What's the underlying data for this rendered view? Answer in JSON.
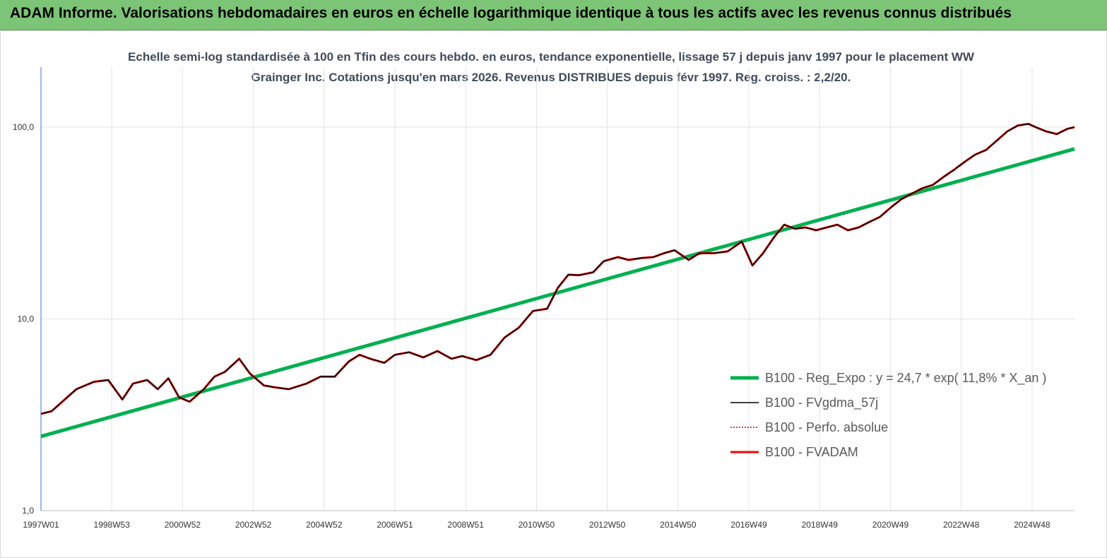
{
  "header": {
    "title": "ADAM Informe. Valorisations hebdomadaires en euros en échelle logarithmique identique à tous les actifs avec les revenus connus distribués"
  },
  "colors": {
    "header_bg": "#7cc576",
    "corner": "#f5b400",
    "trend": "#00b050",
    "fvadam": "#ff0000",
    "gdma": "#000000",
    "perfo": "#c00000"
  },
  "chart_data": {
    "type": "line",
    "title": "Echelle semi-log standardisée à 100 en Tfin des cours hebdo. en euros, tendance exponentielle, lissage 57 j depuis janv 1997 pour le placement WW Grainger Inc. Cotations jusqu'en mars 2026. Revenus DISTRIBUES depuis févr 1997. Reg. croiss. : 2,2/20.",
    "y_scale": "log",
    "ylim": [
      1,
      100
    ],
    "yticks": [
      {
        "value": 100,
        "label": "100,0"
      },
      {
        "value": 10,
        "label": "10,0"
      },
      {
        "value": 1,
        "label": "1,0"
      }
    ],
    "xlim": [
      1997.0,
      2026.2
    ],
    "xticks": [
      {
        "value": 1997.0,
        "label": "1997W01"
      },
      {
        "value": 1999.0,
        "label": "1998W53"
      },
      {
        "value": 2001.0,
        "label": "2000W52"
      },
      {
        "value": 2003.0,
        "label": "2002W52"
      },
      {
        "value": 2005.0,
        "label": "2004W52"
      },
      {
        "value": 2007.0,
        "label": "2006W51"
      },
      {
        "value": 2009.0,
        "label": "2008W51"
      },
      {
        "value": 2011.0,
        "label": "2010W50"
      },
      {
        "value": 2013.0,
        "label": "2012W50"
      },
      {
        "value": 2015.0,
        "label": "2014W50"
      },
      {
        "value": 2017.0,
        "label": "2016W49"
      },
      {
        "value": 2019.0,
        "label": "2018W49"
      },
      {
        "value": 2021.0,
        "label": "2020W49"
      },
      {
        "value": 2023.0,
        "label": "2022W48"
      },
      {
        "value": 2025.0,
        "label": "2024W48"
      }
    ],
    "legend_position": "right",
    "series": [
      {
        "name": "B100 - Reg_Expo : y = 24,7 * exp( 11,8% *  X_an )",
        "style": "trend",
        "x": [
          1997.0,
          2026.2
        ],
        "y": [
          2.44,
          77.0
        ]
      },
      {
        "name": "B100 - FVgdma_57j",
        "style": "gdma",
        "x": [
          1997.0,
          1997.3,
          1997.6,
          1998.0,
          1998.5,
          1998.9,
          1999.3,
          1999.6,
          2000.0,
          2000.3,
          2000.6,
          2000.9,
          2001.2,
          2001.6,
          2001.9,
          2002.2,
          2002.6,
          2002.9,
          2003.3,
          2003.6,
          2004.0,
          2004.5,
          2004.9,
          2005.3,
          2005.7,
          2006.0,
          2006.3,
          2006.7,
          2007.0,
          2007.4,
          2007.8,
          2008.2,
          2008.6,
          2008.9,
          2009.3,
          2009.7,
          2010.1,
          2010.5,
          2010.9,
          2011.3,
          2011.6,
          2011.9,
          2012.2,
          2012.6,
          2012.9,
          2013.3,
          2013.6,
          2014.0,
          2014.3,
          2014.6,
          2014.9,
          2015.3,
          2015.6,
          2016.0,
          2016.4,
          2016.8,
          2017.1,
          2017.4,
          2017.7,
          2018.0,
          2018.3,
          2018.6,
          2018.9,
          2019.2,
          2019.5,
          2019.8,
          2020.1,
          2020.4,
          2020.7,
          2021.0,
          2021.3,
          2021.6,
          2021.9,
          2022.2,
          2022.5,
          2022.8,
          2023.1,
          2023.4,
          2023.7,
          2024.0,
          2024.3,
          2024.6,
          2024.9,
          2025.1,
          2025.4,
          2025.7,
          2026.0,
          2026.2
        ],
        "y": [
          3.2,
          3.3,
          3.7,
          4.3,
          4.7,
          4.8,
          3.8,
          4.6,
          4.8,
          4.3,
          4.9,
          3.9,
          3.7,
          4.3,
          5.0,
          5.3,
          6.2,
          5.2,
          4.5,
          4.4,
          4.3,
          4.6,
          5.0,
          5.0,
          6.0,
          6.5,
          6.2,
          5.9,
          6.5,
          6.7,
          6.3,
          6.8,
          6.2,
          6.4,
          6.1,
          6.5,
          8.0,
          9.0,
          11.0,
          11.3,
          14.5,
          17.0,
          16.9,
          17.5,
          20.0,
          21.0,
          20.3,
          20.8,
          21.0,
          22.0,
          22.8,
          20.3,
          22.0,
          22.0,
          22.5,
          25.3,
          19.0,
          22.0,
          26.5,
          31.0,
          29.5,
          30.0,
          29.0,
          30.0,
          31.0,
          29.0,
          30.0,
          32.0,
          34.0,
          38.0,
          42.0,
          45.0,
          48.0,
          50.0,
          55.0,
          60.0,
          66.0,
          72.0,
          76.0,
          85.0,
          95.0,
          102.0,
          104.0,
          100.0,
          95.0,
          92.0,
          98.0,
          100.0
        ]
      },
      {
        "name": "B100 - Perfo. absolue",
        "style": "perfo",
        "x": [
          1997.0,
          1997.3,
          1997.6,
          1998.0,
          1998.5,
          1998.9,
          1999.3,
          1999.6,
          2000.0,
          2000.3,
          2000.6,
          2000.9,
          2001.2,
          2001.6,
          2001.9,
          2002.2,
          2002.6,
          2002.9,
          2003.3,
          2003.6,
          2004.0,
          2004.5,
          2004.9,
          2005.3,
          2005.7,
          2006.0,
          2006.3,
          2006.7,
          2007.0,
          2007.4,
          2007.8,
          2008.2,
          2008.6,
          2008.9,
          2009.3,
          2009.7,
          2010.1,
          2010.5,
          2010.9,
          2011.3,
          2011.6,
          2011.9,
          2012.2,
          2012.6,
          2012.9,
          2013.3,
          2013.6,
          2014.0,
          2014.3,
          2014.6,
          2014.9,
          2015.3,
          2015.6,
          2016.0,
          2016.4,
          2016.8,
          2017.1,
          2017.4,
          2017.7,
          2018.0,
          2018.3,
          2018.6,
          2018.9,
          2019.2,
          2019.5,
          2019.8,
          2020.1,
          2020.4,
          2020.7,
          2021.0,
          2021.3,
          2021.6,
          2021.9,
          2022.2,
          2022.5,
          2022.8,
          2023.1,
          2023.4,
          2023.7,
          2024.0,
          2024.3,
          2024.6,
          2024.9,
          2025.1,
          2025.4,
          2025.7,
          2026.0,
          2026.2
        ],
        "y": [
          3.2,
          3.3,
          3.7,
          4.3,
          4.7,
          4.8,
          3.8,
          4.6,
          4.8,
          4.3,
          4.9,
          3.9,
          3.7,
          4.3,
          5.0,
          5.3,
          6.2,
          5.2,
          4.5,
          4.4,
          4.3,
          4.6,
          5.0,
          5.0,
          6.0,
          6.5,
          6.2,
          5.9,
          6.5,
          6.7,
          6.3,
          6.8,
          6.2,
          6.4,
          6.1,
          6.5,
          8.0,
          9.0,
          11.0,
          11.3,
          14.5,
          17.0,
          16.9,
          17.5,
          20.0,
          21.0,
          20.3,
          20.8,
          21.0,
          22.0,
          22.8,
          20.3,
          22.0,
          22.0,
          22.5,
          25.3,
          19.0,
          22.0,
          26.5,
          31.0,
          29.5,
          30.0,
          29.0,
          30.0,
          31.0,
          29.0,
          30.0,
          32.0,
          34.0,
          38.0,
          42.0,
          45.0,
          48.0,
          50.0,
          55.0,
          60.0,
          66.0,
          72.0,
          76.0,
          85.0,
          95.0,
          102.0,
          104.0,
          100.0,
          95.0,
          92.0,
          98.0,
          100.0
        ]
      },
      {
        "name": "B100 - FVADAM",
        "style": "fvadam",
        "x": [
          1997.0,
          1997.3,
          1997.6,
          1998.0,
          1998.5,
          1998.9,
          1999.3,
          1999.6,
          2000.0,
          2000.3,
          2000.6,
          2000.9,
          2001.2,
          2001.6,
          2001.9,
          2002.2,
          2002.6,
          2002.9,
          2003.3,
          2003.6,
          2004.0,
          2004.5,
          2004.9,
          2005.3,
          2005.7,
          2006.0,
          2006.3,
          2006.7,
          2007.0,
          2007.4,
          2007.8,
          2008.2,
          2008.6,
          2008.9,
          2009.3,
          2009.7,
          2010.1,
          2010.5,
          2010.9,
          2011.3,
          2011.6,
          2011.9,
          2012.2,
          2012.6,
          2012.9,
          2013.3,
          2013.6,
          2014.0,
          2014.3,
          2014.6,
          2014.9,
          2015.3,
          2015.6,
          2016.0,
          2016.4,
          2016.8,
          2017.1,
          2017.4,
          2017.7,
          2018.0,
          2018.3,
          2018.6,
          2018.9,
          2019.2,
          2019.5,
          2019.8,
          2020.1,
          2020.4,
          2020.7,
          2021.0,
          2021.3,
          2021.6,
          2021.9,
          2022.2,
          2022.5,
          2022.8,
          2023.1,
          2023.4,
          2023.7,
          2024.0,
          2024.3,
          2024.6,
          2024.9,
          2025.1,
          2025.4,
          2025.7,
          2026.0,
          2026.2
        ],
        "y": [
          3.2,
          3.3,
          3.7,
          4.3,
          4.7,
          4.8,
          3.8,
          4.6,
          4.8,
          4.3,
          4.9,
          3.9,
          3.7,
          4.3,
          5.0,
          5.3,
          6.2,
          5.2,
          4.5,
          4.4,
          4.3,
          4.6,
          5.0,
          5.0,
          6.0,
          6.5,
          6.2,
          5.9,
          6.5,
          6.7,
          6.3,
          6.8,
          6.2,
          6.4,
          6.1,
          6.5,
          8.0,
          9.0,
          11.0,
          11.3,
          14.5,
          17.0,
          16.9,
          17.5,
          20.0,
          21.0,
          20.3,
          20.8,
          21.0,
          22.0,
          22.8,
          20.3,
          22.0,
          22.0,
          22.5,
          25.3,
          19.0,
          22.0,
          26.5,
          31.0,
          29.5,
          30.0,
          29.0,
          30.0,
          31.0,
          29.0,
          30.0,
          32.0,
          34.0,
          38.0,
          42.0,
          45.0,
          48.0,
          50.0,
          55.0,
          60.0,
          66.0,
          72.0,
          76.0,
          85.0,
          95.0,
          102.0,
          104.0,
          100.0,
          95.0,
          92.0,
          98.0,
          100.0
        ]
      }
    ]
  }
}
